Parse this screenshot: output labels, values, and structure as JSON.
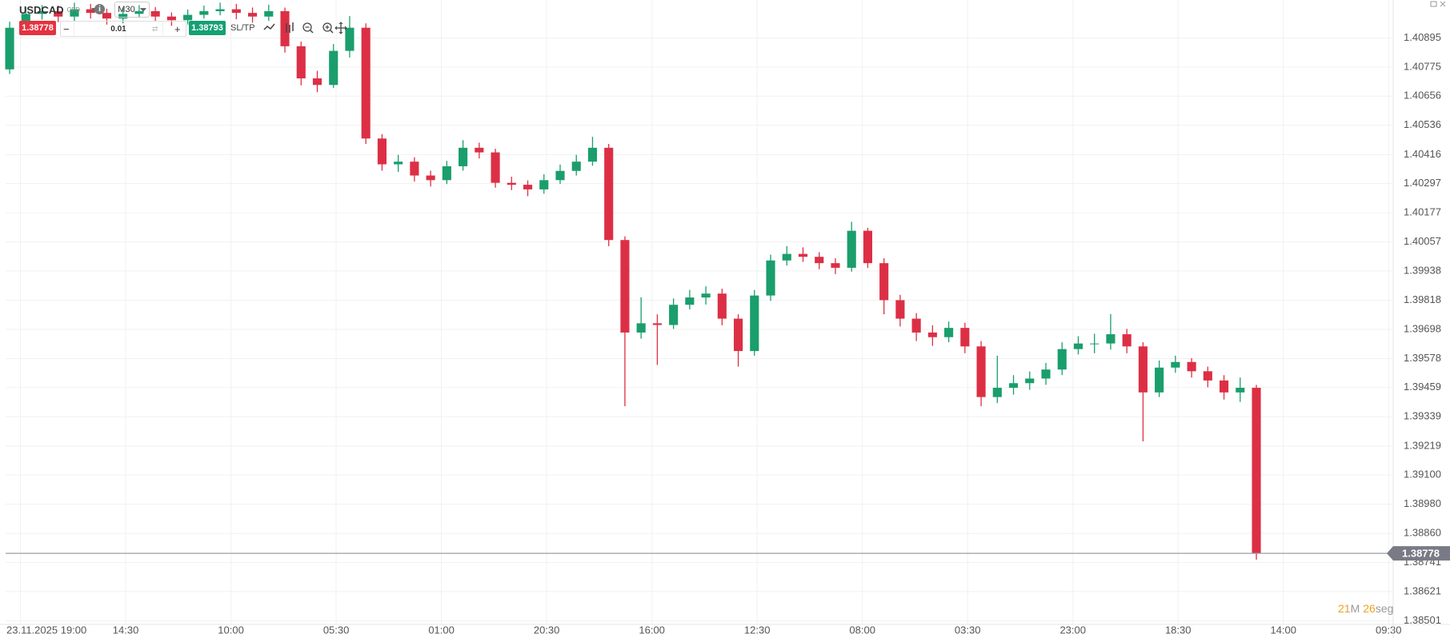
{
  "toolbar": {
    "symbol": "USDCAD",
    "instrument_type": "CFD",
    "timeframe": "M30",
    "sell_price": 1.38778,
    "minus": "−",
    "volume": 0.01,
    "plus": "+",
    "buy_price": 1.38793,
    "sltp": "SL/TP",
    "countdown_minutes": "21",
    "countdown_minutes_unit": "M",
    "countdown_seconds": "26",
    "countdown_seconds_unit": "seg"
  },
  "chart_data": {
    "type": "candlestick",
    "up_color": "#1a9e6c",
    "down_color": "#dc2f45",
    "grid": true,
    "last_price": 1.38778,
    "x": [
      -4,
      2,
      8,
      14,
      20,
      26,
      32,
      38,
      44,
      50,
      56,
      62,
      68,
      74,
      80,
      86,
      92,
      98,
      104,
      110,
      116,
      122,
      128,
      134,
      140,
      146,
      152,
      158,
      164,
      170,
      176,
      182,
      188,
      194,
      200,
      206,
      212,
      218,
      224,
      230,
      236,
      242,
      248,
      254,
      260,
      266,
      272,
      278,
      284,
      290,
      296,
      302,
      308,
      314,
      320,
      326,
      332,
      338,
      344,
      350,
      356,
      362,
      368,
      374,
      380,
      386,
      392,
      398,
      404,
      410,
      416,
      422,
      428,
      434,
      440,
      446,
      452,
      458
    ],
    "open": [
      1.40766,
      1.40937,
      1.40994,
      1.41005,
      1.40983,
      1.41013,
      1.40998,
      1.40975,
      1.40994,
      1.41005,
      1.40983,
      1.40968,
      1.4099,
      1.41005,
      1.41013,
      1.40998,
      1.40983,
      1.41005,
      1.40861,
      1.40729,
      1.40702,
      1.40842,
      1.40937,
      1.40482,
      1.40376,
      1.40387,
      1.4033,
      1.40311,
      1.40368,
      1.40444,
      1.40425,
      1.403,
      1.40292,
      1.40273,
      1.40311,
      1.40349,
      1.40387,
      1.40444,
      1.40065,
      1.39685,
      1.39723,
      1.39716,
      1.39799,
      1.39829,
      1.39845,
      1.39742,
      1.39609,
      1.39837,
      1.39981,
      1.40008,
      1.39996,
      1.3997,
      1.39951,
      1.40103,
      1.3997,
      1.39818,
      1.39742,
      1.39685,
      1.39666,
      1.39704,
      1.39628,
      1.3942,
      1.39458,
      1.39477,
      1.39496,
      1.39533,
      1.39617,
      1.3964,
      1.3964,
      1.39678,
      1.39628,
      1.39439,
      1.39541,
      1.39564,
      1.39526,
      1.39488,
      1.39439,
      1.39458
    ],
    "high": [
      1.40962,
      1.4102,
      1.4103,
      1.41028,
      1.4104,
      1.41035,
      1.41015,
      1.41018,
      1.4103,
      1.41022,
      1.41,
      1.41012,
      1.41028,
      1.4104,
      1.41035,
      1.4102,
      1.41032,
      1.4102,
      1.4088,
      1.4076,
      1.4087,
      1.40985,
      1.40955,
      1.405,
      1.40415,
      1.40405,
      1.4035,
      1.4039,
      1.40475,
      1.40465,
      1.4044,
      1.40325,
      1.4031,
      1.40335,
      1.40375,
      1.40415,
      1.40489,
      1.4046,
      1.4008,
      1.3983,
      1.3976,
      1.39825,
      1.3986,
      1.39875,
      1.39865,
      1.3976,
      1.3986,
      1.40005,
      1.4004,
      1.40035,
      1.40015,
      1.3999,
      1.4014,
      1.40115,
      1.3999,
      1.3984,
      1.39765,
      1.39715,
      1.3973,
      1.39725,
      1.3965,
      1.3959,
      1.3951,
      1.39525,
      1.3956,
      1.39645,
      1.3967,
      1.3968,
      1.39761,
      1.397,
      1.39645,
      1.3957,
      1.3959,
      1.3958,
      1.39545,
      1.3951,
      1.395,
      1.3947
    ],
    "low": [
      1.40747,
      1.40915,
      1.4097,
      1.4096,
      1.40965,
      1.40975,
      1.4095,
      1.40955,
      1.40978,
      1.40962,
      1.40945,
      1.4095,
      1.40975,
      1.40988,
      1.40972,
      1.40958,
      1.40965,
      1.40835,
      1.407,
      1.40672,
      1.4069,
      1.40815,
      1.4046,
      1.4035,
      1.40345,
      1.40305,
      1.40285,
      1.40295,
      1.4035,
      1.404,
      1.4028,
      1.4027,
      1.40245,
      1.40255,
      1.40295,
      1.4033,
      1.4037,
      1.4004,
      1.39382,
      1.3966,
      1.39552,
      1.397,
      1.3978,
      1.398,
      1.39715,
      1.39545,
      1.3959,
      1.39815,
      1.3996,
      1.39975,
      1.39945,
      1.39925,
      1.39935,
      1.3995,
      1.3976,
      1.3971,
      1.3965,
      1.3963,
      1.39645,
      1.396,
      1.39382,
      1.39395,
      1.3943,
      1.3945,
      1.3947,
      1.3951,
      1.39595,
      1.396,
      1.39615,
      1.396,
      1.39238,
      1.3942,
      1.3952,
      1.395,
      1.3946,
      1.3941,
      1.394,
      1.38752
    ],
    "close": [
      1.40937,
      1.40994,
      1.41005,
      1.40983,
      1.41013,
      1.40998,
      1.40975,
      1.40994,
      1.41005,
      1.40983,
      1.40968,
      1.4099,
      1.41005,
      1.41013,
      1.40998,
      1.40983,
      1.41005,
      1.40861,
      1.40729,
      1.40702,
      1.40842,
      1.40937,
      1.40482,
      1.40376,
      1.40387,
      1.4033,
      1.40311,
      1.40368,
      1.40444,
      1.40425,
      1.403,
      1.40292,
      1.40273,
      1.40311,
      1.40349,
      1.40387,
      1.40444,
      1.40065,
      1.39685,
      1.39723,
      1.39716,
      1.39799,
      1.39829,
      1.39845,
      1.39742,
      1.39609,
      1.39837,
      1.39981,
      1.40008,
      1.39996,
      1.3997,
      1.39951,
      1.40103,
      1.3997,
      1.39818,
      1.39742,
      1.39685,
      1.39666,
      1.39704,
      1.39628,
      1.3942,
      1.39458,
      1.39477,
      1.39496,
      1.39533,
      1.39617,
      1.3964,
      1.3964,
      1.39678,
      1.39628,
      1.39439,
      1.39541,
      1.39564,
      1.39526,
      1.39488,
      1.39439,
      1.39458,
      1.38778
    ],
    "xlim": [
      -5.5,
      508.7
    ],
    "xticks": [
      {
        "value": 0,
        "label": "23.11.2025 19:00"
      },
      {
        "value": 39,
        "label": "14:30"
      },
      {
        "value": 78,
        "label": "10:00"
      },
      {
        "value": 117,
        "label": "05:30"
      },
      {
        "value": 156,
        "label": "01:00"
      },
      {
        "value": 195,
        "label": "20:30"
      },
      {
        "value": 234,
        "label": "16:00"
      },
      {
        "value": 273,
        "label": "12:30"
      },
      {
        "value": 312,
        "label": "08:00"
      },
      {
        "value": 351,
        "label": "03:30"
      },
      {
        "value": 390,
        "label": "23:00"
      },
      {
        "value": 429,
        "label": "18:30"
      },
      {
        "value": 468,
        "label": "14:00"
      },
      {
        "value": 507,
        "label": "09:30"
      }
    ],
    "ylim": [
      1.38486,
      1.41051
    ],
    "yticks": [
      1.40895,
      1.40775,
      1.40656,
      1.40536,
      1.40416,
      1.40297,
      1.40177,
      1.40057,
      1.39938,
      1.39818,
      1.39698,
      1.39578,
      1.39459,
      1.39339,
      1.39219,
      {
        "value": 1.391,
        "label": "1.39100"
      },
      {
        "value": 1.3898,
        "label": "1.38980"
      },
      {
        "value": 1.3886,
        "label": "1.38860"
      },
      1.38741,
      1.38621,
      1.38501
    ]
  }
}
